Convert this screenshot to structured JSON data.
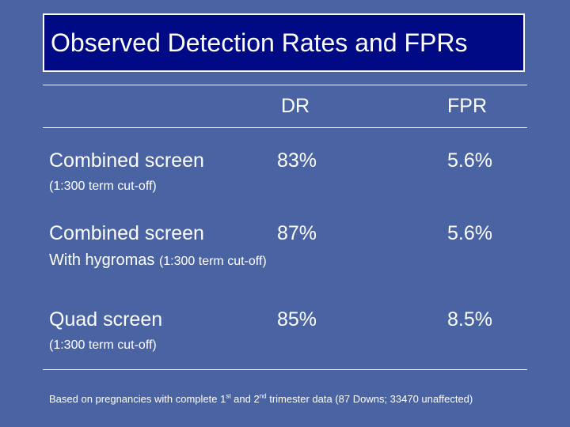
{
  "title": "Observed Detection Rates and FPRs",
  "columns": {
    "dr": "DR",
    "fpr": "FPR"
  },
  "rows": [
    {
      "label": "Combined screen",
      "dr": "83%",
      "fpr": "5.6%",
      "sub_prefix": "",
      "sub_note": "(1:300 term cut-off)"
    },
    {
      "label": "Combined screen",
      "dr": "87%",
      "fpr": "5.6%",
      "sub_prefix": "With hygromas",
      "sub_note": "(1:300 term cut-off)"
    },
    {
      "label": "Quad screen",
      "dr": "85%",
      "fpr": "8.5%",
      "sub_prefix": "",
      "sub_note": "(1:300 term cut-off)"
    }
  ],
  "footnote": {
    "part1": "Based on pregnancies with complete 1",
    "sup1": "st",
    "part2": " and 2",
    "sup2": "nd",
    "part3": " trimester data (87 Downs; 33470 unaffected)"
  },
  "colors": {
    "background": "#4a63a3",
    "title_box": "#000a85",
    "text": "#ffffff"
  }
}
